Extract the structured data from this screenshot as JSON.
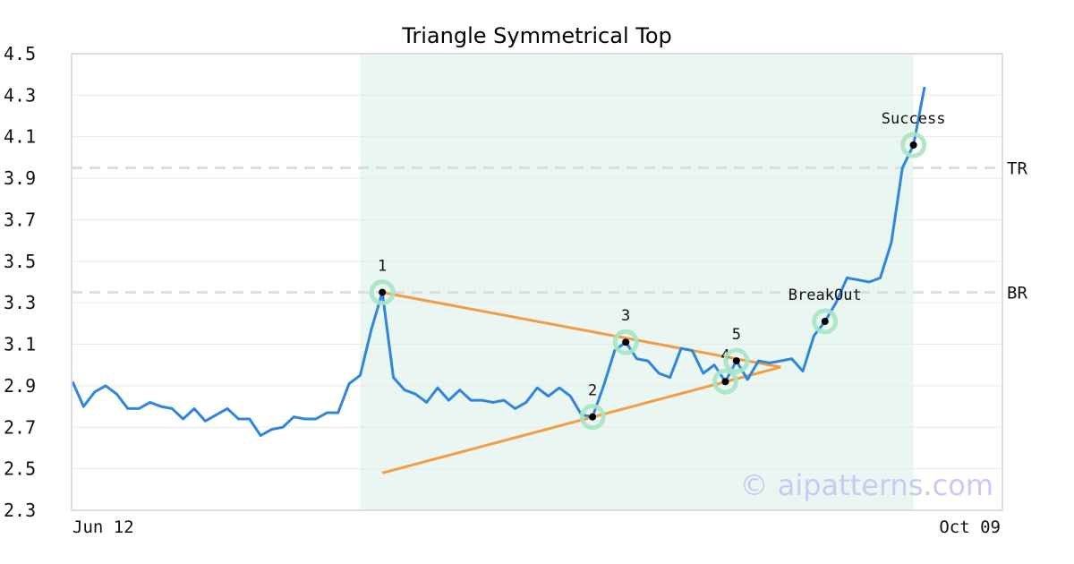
{
  "chart_data": {
    "type": "line",
    "title": "Triangle Symmetrical Top",
    "xlabel": "",
    "ylabel": "",
    "ylim": [
      2.3,
      4.5
    ],
    "yticks": [
      "2.3",
      "2.5",
      "2.7",
      "2.9",
      "3.1",
      "3.3",
      "3.5",
      "3.7",
      "3.9",
      "4.1",
      "4.3",
      "4.5"
    ],
    "x_tick_labels": [
      "Jun 12",
      "Oct 09"
    ],
    "grid": true,
    "colors": {
      "price": "#2e86de",
      "trendline": "#f39c44",
      "shade": "#eaf6f1",
      "marker_ring": "#a8e3c4",
      "level_line": "#dddddd",
      "watermark": "#c9c9f2"
    },
    "series": [
      {
        "values": [
          2.92,
          2.8,
          2.87,
          2.9,
          2.86,
          2.79,
          2.79,
          2.82,
          2.8,
          2.79,
          2.74,
          2.79,
          2.73,
          2.76,
          2.79,
          2.74,
          2.74,
          2.66,
          2.69,
          2.7,
          2.75,
          2.74,
          2.74,
          2.77,
          2.77,
          2.91,
          2.95,
          3.17,
          3.35,
          2.94,
          2.88,
          2.86,
          2.82,
          2.89,
          2.83,
          2.88,
          2.83,
          2.83,
          2.82,
          2.83,
          2.79,
          2.82,
          2.89,
          2.85,
          2.89,
          2.85,
          2.76,
          2.75,
          2.9,
          3.07,
          3.11,
          3.03,
          3.02,
          2.96,
          2.94,
          3.08,
          3.07,
          2.96,
          3.0,
          2.92,
          3.02,
          2.93,
          3.02,
          3.01,
          3.02,
          3.03,
          2.97,
          3.14,
          3.21,
          3.3,
          3.42,
          3.41,
          3.4,
          3.42,
          3.59,
          3.95,
          4.06,
          4.34
        ]
      }
    ],
    "pattern_region": {
      "start_index": 26,
      "end_index": 76
    },
    "trendlines": [
      {
        "name": "upper",
        "from": [
          28,
          3.35
        ],
        "to": [
          64,
          2.99
        ]
      },
      {
        "name": "lower",
        "from": [
          28,
          2.48
        ],
        "to": [
          64,
          2.99
        ]
      }
    ],
    "levels": [
      {
        "label": "TR",
        "value": 3.95
      },
      {
        "label": "BR",
        "value": 3.35
      }
    ],
    "points": [
      {
        "label": "1",
        "index": 28,
        "value": 3.35,
        "label_pos": "above"
      },
      {
        "label": "2",
        "index": 47,
        "value": 2.75,
        "label_pos": "above"
      },
      {
        "label": "3",
        "index": 50,
        "value": 3.11,
        "label_pos": "above"
      },
      {
        "label": "4",
        "index": 59,
        "value": 2.92,
        "label_pos": "above"
      },
      {
        "label": "5",
        "index": 60,
        "value": 3.02,
        "label_pos": "above"
      },
      {
        "label": "BreakOut",
        "index": 68,
        "value": 3.21,
        "label_pos": "above"
      },
      {
        "label": "Success",
        "index": 76,
        "value": 4.06,
        "label_pos": "above"
      }
    ],
    "watermark": "© aipatterns.com"
  }
}
